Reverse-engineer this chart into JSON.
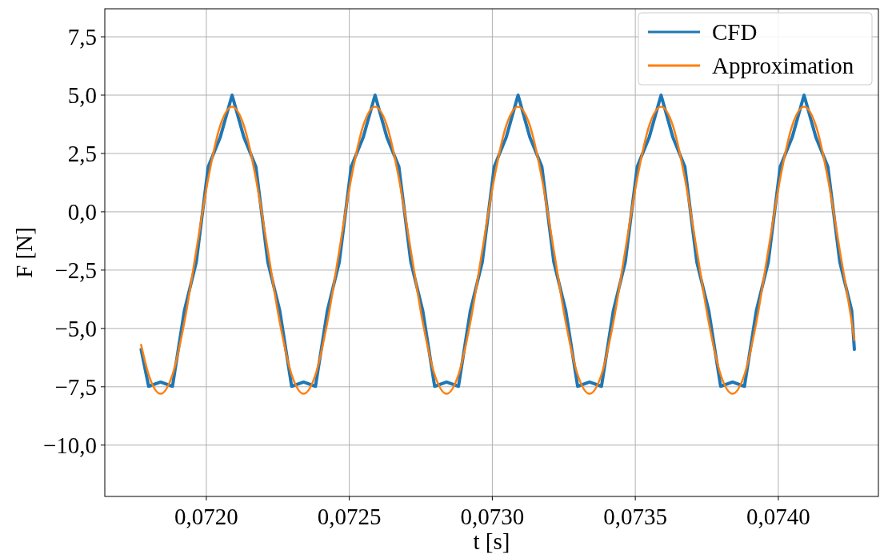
{
  "chart_data": {
    "type": "line",
    "xlabel": "t [s]",
    "ylabel": "F [N]",
    "x": [
      0.071772,
      0.0717983,
      0.07184,
      0.0718817,
      0.0719233,
      0.071965,
      0.0720067,
      0.0720483,
      0.07209,
      0.0721317,
      0.0721733,
      0.072215,
      0.0722567,
      0.0722983,
      0.07234,
      0.0723817,
      0.0724233,
      0.072465,
      0.0725067,
      0.0725483,
      0.07259,
      0.0726317,
      0.0726733,
      0.072715,
      0.0727567,
      0.0727983,
      0.07284,
      0.0728817,
      0.0729233,
      0.072965,
      0.0730067,
      0.0730483,
      0.07309,
      0.0731317,
      0.0731733,
      0.073215,
      0.0732567,
      0.0732983,
      0.07334,
      0.0733817,
      0.0734233,
      0.073465,
      0.0735067,
      0.0735483,
      0.07359,
      0.0736317,
      0.0736733,
      0.073715,
      0.0737567,
      0.0737983,
      0.07384,
      0.0738817,
      0.0739233,
      0.073965,
      0.0740067,
      0.0740483,
      0.07409,
      0.0741317,
      0.0741733,
      0.074215,
      0.0742567,
      0.074266
    ],
    "series": [
      {
        "name": "CFD",
        "color": "#1f77b4",
        "values": [
          -5.9,
          -7.48,
          -7.3,
          -7.48,
          -4.23,
          -2.15,
          1.93,
          3.18,
          5.0,
          3.18,
          1.93,
          -2.15,
          -4.23,
          -7.48,
          -7.3,
          -7.48,
          -4.23,
          -2.15,
          1.93,
          3.18,
          5.0,
          3.18,
          1.93,
          -2.15,
          -4.23,
          -7.48,
          -7.3,
          -7.48,
          -4.23,
          -2.15,
          1.93,
          3.18,
          5.0,
          3.18,
          1.93,
          -2.15,
          -4.23,
          -7.48,
          -7.3,
          -7.48,
          -4.23,
          -2.15,
          1.93,
          3.18,
          5.0,
          3.18,
          1.93,
          -2.15,
          -4.23,
          -7.48,
          -7.3,
          -7.48,
          -4.23,
          -2.15,
          1.93,
          3.18,
          5.0,
          3.18,
          1.93,
          -2.15,
          -4.23,
          -5.9
        ]
      },
      {
        "name": "Approximation",
        "color": "#ff7f0e",
        "values": [
          -5.7,
          -6.98,
          -7.8,
          -6.98,
          -4.73,
          -1.65,
          1.43,
          3.68,
          4.5,
          3.68,
          1.43,
          -1.65,
          -4.73,
          -6.98,
          -7.8,
          -6.98,
          -4.73,
          -1.65,
          1.43,
          3.68,
          4.5,
          3.68,
          1.43,
          -1.65,
          -4.73,
          -6.98,
          -7.8,
          -6.98,
          -4.73,
          -1.65,
          1.43,
          3.68,
          4.5,
          3.68,
          1.43,
          -1.65,
          -4.73,
          -6.98,
          -7.8,
          -6.98,
          -4.73,
          -1.65,
          1.43,
          3.68,
          4.5,
          3.68,
          1.43,
          -1.65,
          -4.73,
          -6.98,
          -7.8,
          -6.98,
          -4.73,
          -1.65,
          1.43,
          3.68,
          4.5,
          3.68,
          1.43,
          -1.65,
          -4.73,
          -5.5
        ]
      }
    ],
    "xlim": [
      0.071645,
      0.07435
    ],
    "xticks": [
      {
        "value": 0.072,
        "label": "0,0720"
      },
      {
        "value": 0.0725,
        "label": "0,0725"
      },
      {
        "value": 0.073,
        "label": "0,0730"
      },
      {
        "value": 0.0735,
        "label": "0,0735"
      },
      {
        "value": 0.074,
        "label": "0,0740"
      }
    ],
    "ylim": [
      -12.2,
      8.7
    ],
    "yticks": [
      {
        "value": -10,
        "label": "−10,0"
      },
      {
        "value": -7.5,
        "label": "−7,5"
      },
      {
        "value": -5,
        "label": "−5,0"
      },
      {
        "value": -2.5,
        "label": "−2,5"
      },
      {
        "value": 0,
        "label": "0,0"
      },
      {
        "value": 2.5,
        "label": "2,5"
      },
      {
        "value": 5,
        "label": "5,0"
      },
      {
        "value": 7.5,
        "label": "7,5"
      }
    ],
    "grid": true,
    "legend": "top right",
    "marker": "none",
    "line_style": "solid"
  }
}
